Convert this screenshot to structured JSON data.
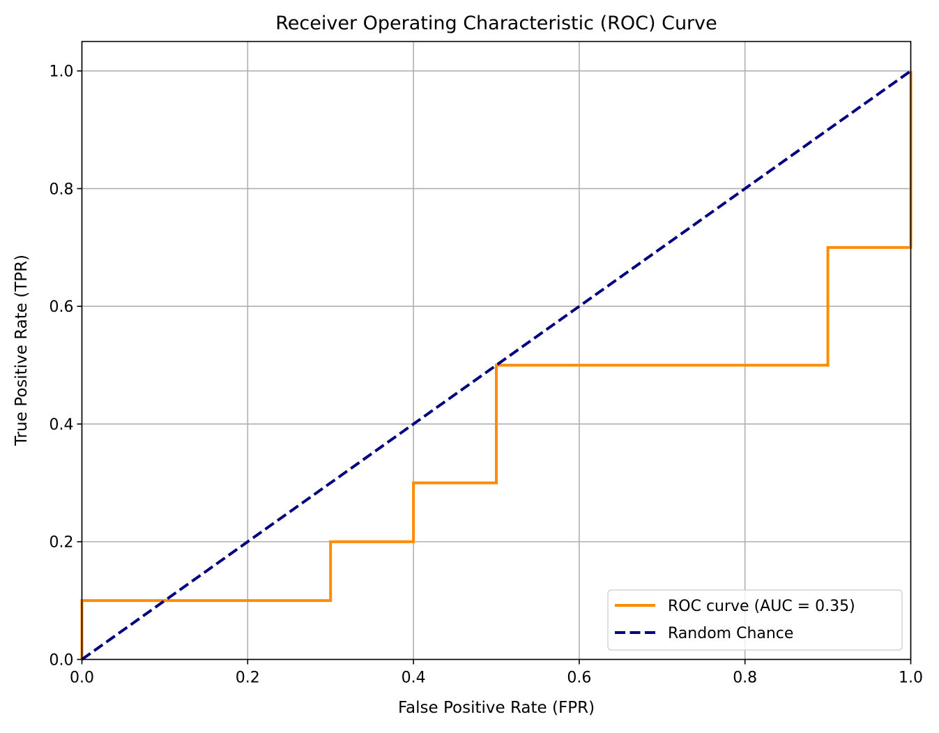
{
  "chart_data": {
    "type": "line",
    "title": "Receiver Operating Characteristic (ROC) Curve",
    "xlabel": "False Positive Rate (FPR)",
    "ylabel": "True Positive Rate (TPR)",
    "xlim": [
      0.0,
      1.0
    ],
    "ylim": [
      0.0,
      1.05
    ],
    "xticks": [
      0.0,
      0.2,
      0.4,
      0.6,
      0.8,
      1.0
    ],
    "xtick_labels": [
      "0.0",
      "0.2",
      "0.4",
      "0.6",
      "0.8",
      "1.0"
    ],
    "yticks": [
      0.0,
      0.2,
      0.4,
      0.6,
      0.8,
      1.0
    ],
    "ytick_labels": [
      "0.0",
      "0.2",
      "0.4",
      "0.6",
      "0.8",
      "1.0"
    ],
    "grid": true,
    "legend_position": "lower-right",
    "series": [
      {
        "name": "ROC curve (AUC = 0.35)",
        "color": "#ff8c00",
        "linestyle": "solid",
        "x": [
          0.0,
          0.0,
          0.3,
          0.3,
          0.4,
          0.4,
          0.5,
          0.5,
          0.9,
          0.9,
          1.0,
          1.0
        ],
        "y": [
          0.0,
          0.1,
          0.1,
          0.2,
          0.2,
          0.3,
          0.3,
          0.5,
          0.5,
          0.7,
          0.7,
          1.0
        ]
      },
      {
        "name": "Random Chance",
        "color": "#000080",
        "linestyle": "dashed",
        "x": [
          0.0,
          1.0
        ],
        "y": [
          0.0,
          1.0
        ]
      }
    ]
  }
}
